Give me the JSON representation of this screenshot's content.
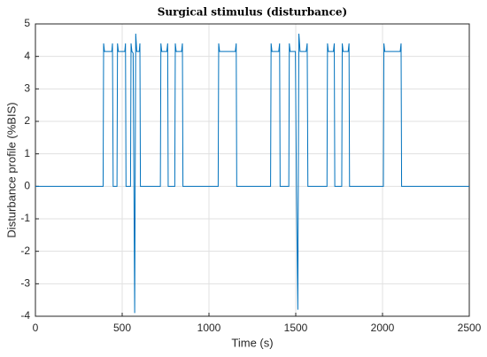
{
  "chart_data": {
    "type": "line",
    "title": "Surgical stimulus (disturbance)",
    "x_label": "Time (s)",
    "y_label": "Disturbance profile (%BIS)",
    "x": [
      0,
      390,
      393,
      398,
      440,
      444,
      448,
      470,
      473,
      478,
      515,
      519,
      522,
      548,
      551,
      556,
      563,
      572,
      578,
      584,
      598,
      602,
      605,
      720,
      723,
      728,
      757,
      762,
      765,
      803,
      806,
      811,
      842,
      847,
      850,
      1053,
      1056,
      1061,
      1152,
      1157,
      1160,
      1355,
      1358,
      1363,
      1402,
      1407,
      1410,
      1460,
      1463,
      1468,
      1498,
      1504,
      1512,
      1518,
      1525,
      1560,
      1566,
      1570,
      1680,
      1683,
      1688,
      1717,
      1722,
      1725,
      1765,
      1768,
      1773,
      1802,
      1807,
      1810,
      2005,
      2008,
      2013,
      2102,
      2107,
      2110,
      2500
    ],
    "series": [
      {
        "name": "Disturbance",
        "color": "#0072bd",
        "values": [
          0,
          0,
          4.4,
          4.15,
          4.15,
          4.4,
          0,
          0,
          4.4,
          4.15,
          4.15,
          4.4,
          0,
          0,
          4.4,
          4.15,
          4.1,
          -3.9,
          4.7,
          4.15,
          4.15,
          4.4,
          0,
          0,
          4.4,
          4.15,
          4.15,
          4.4,
          0,
          0,
          4.4,
          4.15,
          4.15,
          4.4,
          0,
          0,
          4.4,
          4.15,
          4.15,
          4.4,
          0,
          0,
          4.4,
          4.15,
          4.15,
          4.4,
          0,
          0,
          4.4,
          4.15,
          4.15,
          0,
          -3.8,
          4.7,
          4.15,
          4.15,
          4.4,
          0,
          0,
          4.4,
          4.15,
          4.15,
          4.4,
          0,
          0,
          4.4,
          4.15,
          4.15,
          4.4,
          0,
          0,
          4.4,
          4.15,
          4.15,
          4.4,
          0,
          0
        ]
      }
    ],
    "xlim": [
      0,
      2500
    ],
    "xticks": [
      0,
      500,
      1000,
      1500,
      2000,
      2500
    ],
    "ylim": [
      -4,
      5
    ],
    "yticks": [
      -4,
      -3,
      -2,
      -1,
      0,
      1,
      2,
      3,
      4,
      5
    ],
    "grid": true
  }
}
